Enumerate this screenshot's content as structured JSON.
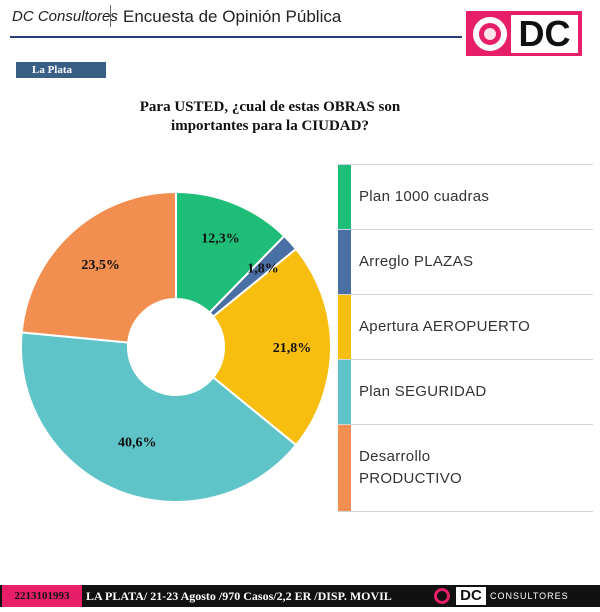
{
  "header": {
    "brand": "DC Consultores",
    "title": "Encuesta de Opinión Pública",
    "logo_text": "DC"
  },
  "location_tag": "La Plata",
  "question": "Para USTED, ¿cual de estas OBRAS son importantes para la CIUDAD?",
  "chart_data": {
    "type": "pie",
    "donut": true,
    "title": "Para USTED, ¿cual de estas OBRAS son importantes para la CIUDAD?",
    "categories": [
      "Plan 1000 cuadras",
      "Arreglo PLAZAS",
      "Apertura AEROPUERTO",
      "Plan SEGURIDAD",
      "Desarrollo PRODUCTIVO"
    ],
    "values": [
      12.3,
      1.8,
      21.8,
      40.6,
      23.5
    ],
    "labels": [
      "12,3%",
      "1,8%",
      "21,8%",
      "40,6%",
      "23,5%"
    ],
    "colors": [
      "#1fbe78",
      "#4a6fa5",
      "#f7bd0f",
      "#5ec4c7",
      "#f28e4f"
    ],
    "legend_position": "right"
  },
  "legend": [
    {
      "label": "Plan 1000 cuadras",
      "color": "#1fbe78"
    },
    {
      "label": "Arreglo PLAZAS",
      "color": "#4a6fa5"
    },
    {
      "label": "Apertura AEROPUERTO",
      "color": "#f7bd0f"
    },
    {
      "label": "Plan SEGURIDAD",
      "color": "#5ec4c7"
    },
    {
      "label": "Desarrollo PRODUCTIVO",
      "color": "#f28e4f"
    }
  ],
  "footer": {
    "code": "2213101993",
    "info": "LA PLATA/ 21-23 Agosto /970 Casos/2,2 ER /DISP. MOVIL",
    "logo_dc": "DC",
    "logo_consultores": "CONSULTORES"
  }
}
